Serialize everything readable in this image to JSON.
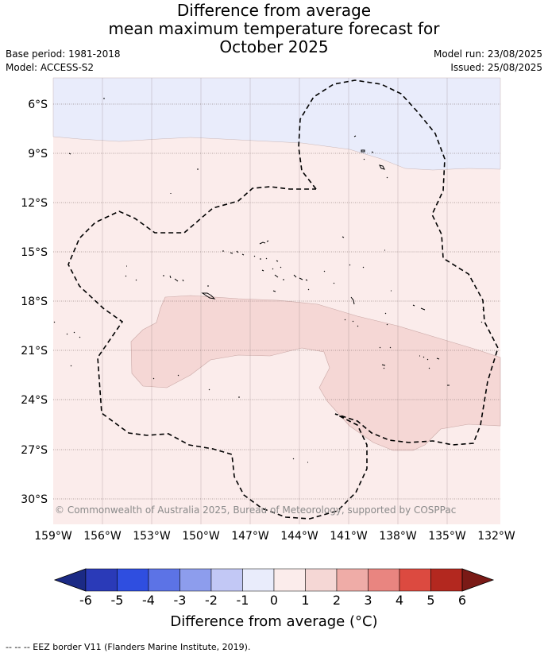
{
  "title": {
    "line1": "Difference from average",
    "line2": "mean maximum temperature forecast for",
    "line3": "October 2025"
  },
  "meta": {
    "base_period": "Base period: 1981-2018",
    "model": "Model: ACCESS-S2",
    "model_run": "Model run: 23/08/2025",
    "issued": "Issued: 25/08/2025"
  },
  "map": {
    "lat_labels": [
      "6°S",
      "9°S",
      "12°S",
      "15°S",
      "18°S",
      "21°S",
      "24°S",
      "27°S",
      "30°S"
    ],
    "lon_labels": [
      "159°W",
      "156°W",
      "153°W",
      "150°W",
      "147°W",
      "144°W",
      "141°W",
      "138°W",
      "135°W",
      "132°W"
    ],
    "copyright": "© Commonwealth of Australia 2025, Bureau of Meteorology, supported by COSPPac",
    "region_colors": {
      "negative_0_to_-1": "#e9ecfb",
      "positive_0_to_1": "#fbeceb",
      "positive_1_to_2": "#f5d7d5"
    }
  },
  "colorbar": {
    "title": "Difference from average (°C)",
    "ticks": [
      "-6",
      "-5",
      "-4",
      "-3",
      "-2",
      "-1",
      "0",
      "1",
      "2",
      "3",
      "4",
      "5",
      "6"
    ],
    "colors": [
      "#1b2a85",
      "#2a3ab8",
      "#2f4ee0",
      "#5c73e6",
      "#8d9ded",
      "#c2c8f5",
      "#e9ecfb",
      "#fbeceb",
      "#f5d7d5",
      "#efaca7",
      "#e98580",
      "#dc4a40",
      "#b3281f",
      "#7a1a16"
    ]
  },
  "footnote": "--  --  -- EEZ border V11 (Flanders Marine Institute, 2019)."
}
